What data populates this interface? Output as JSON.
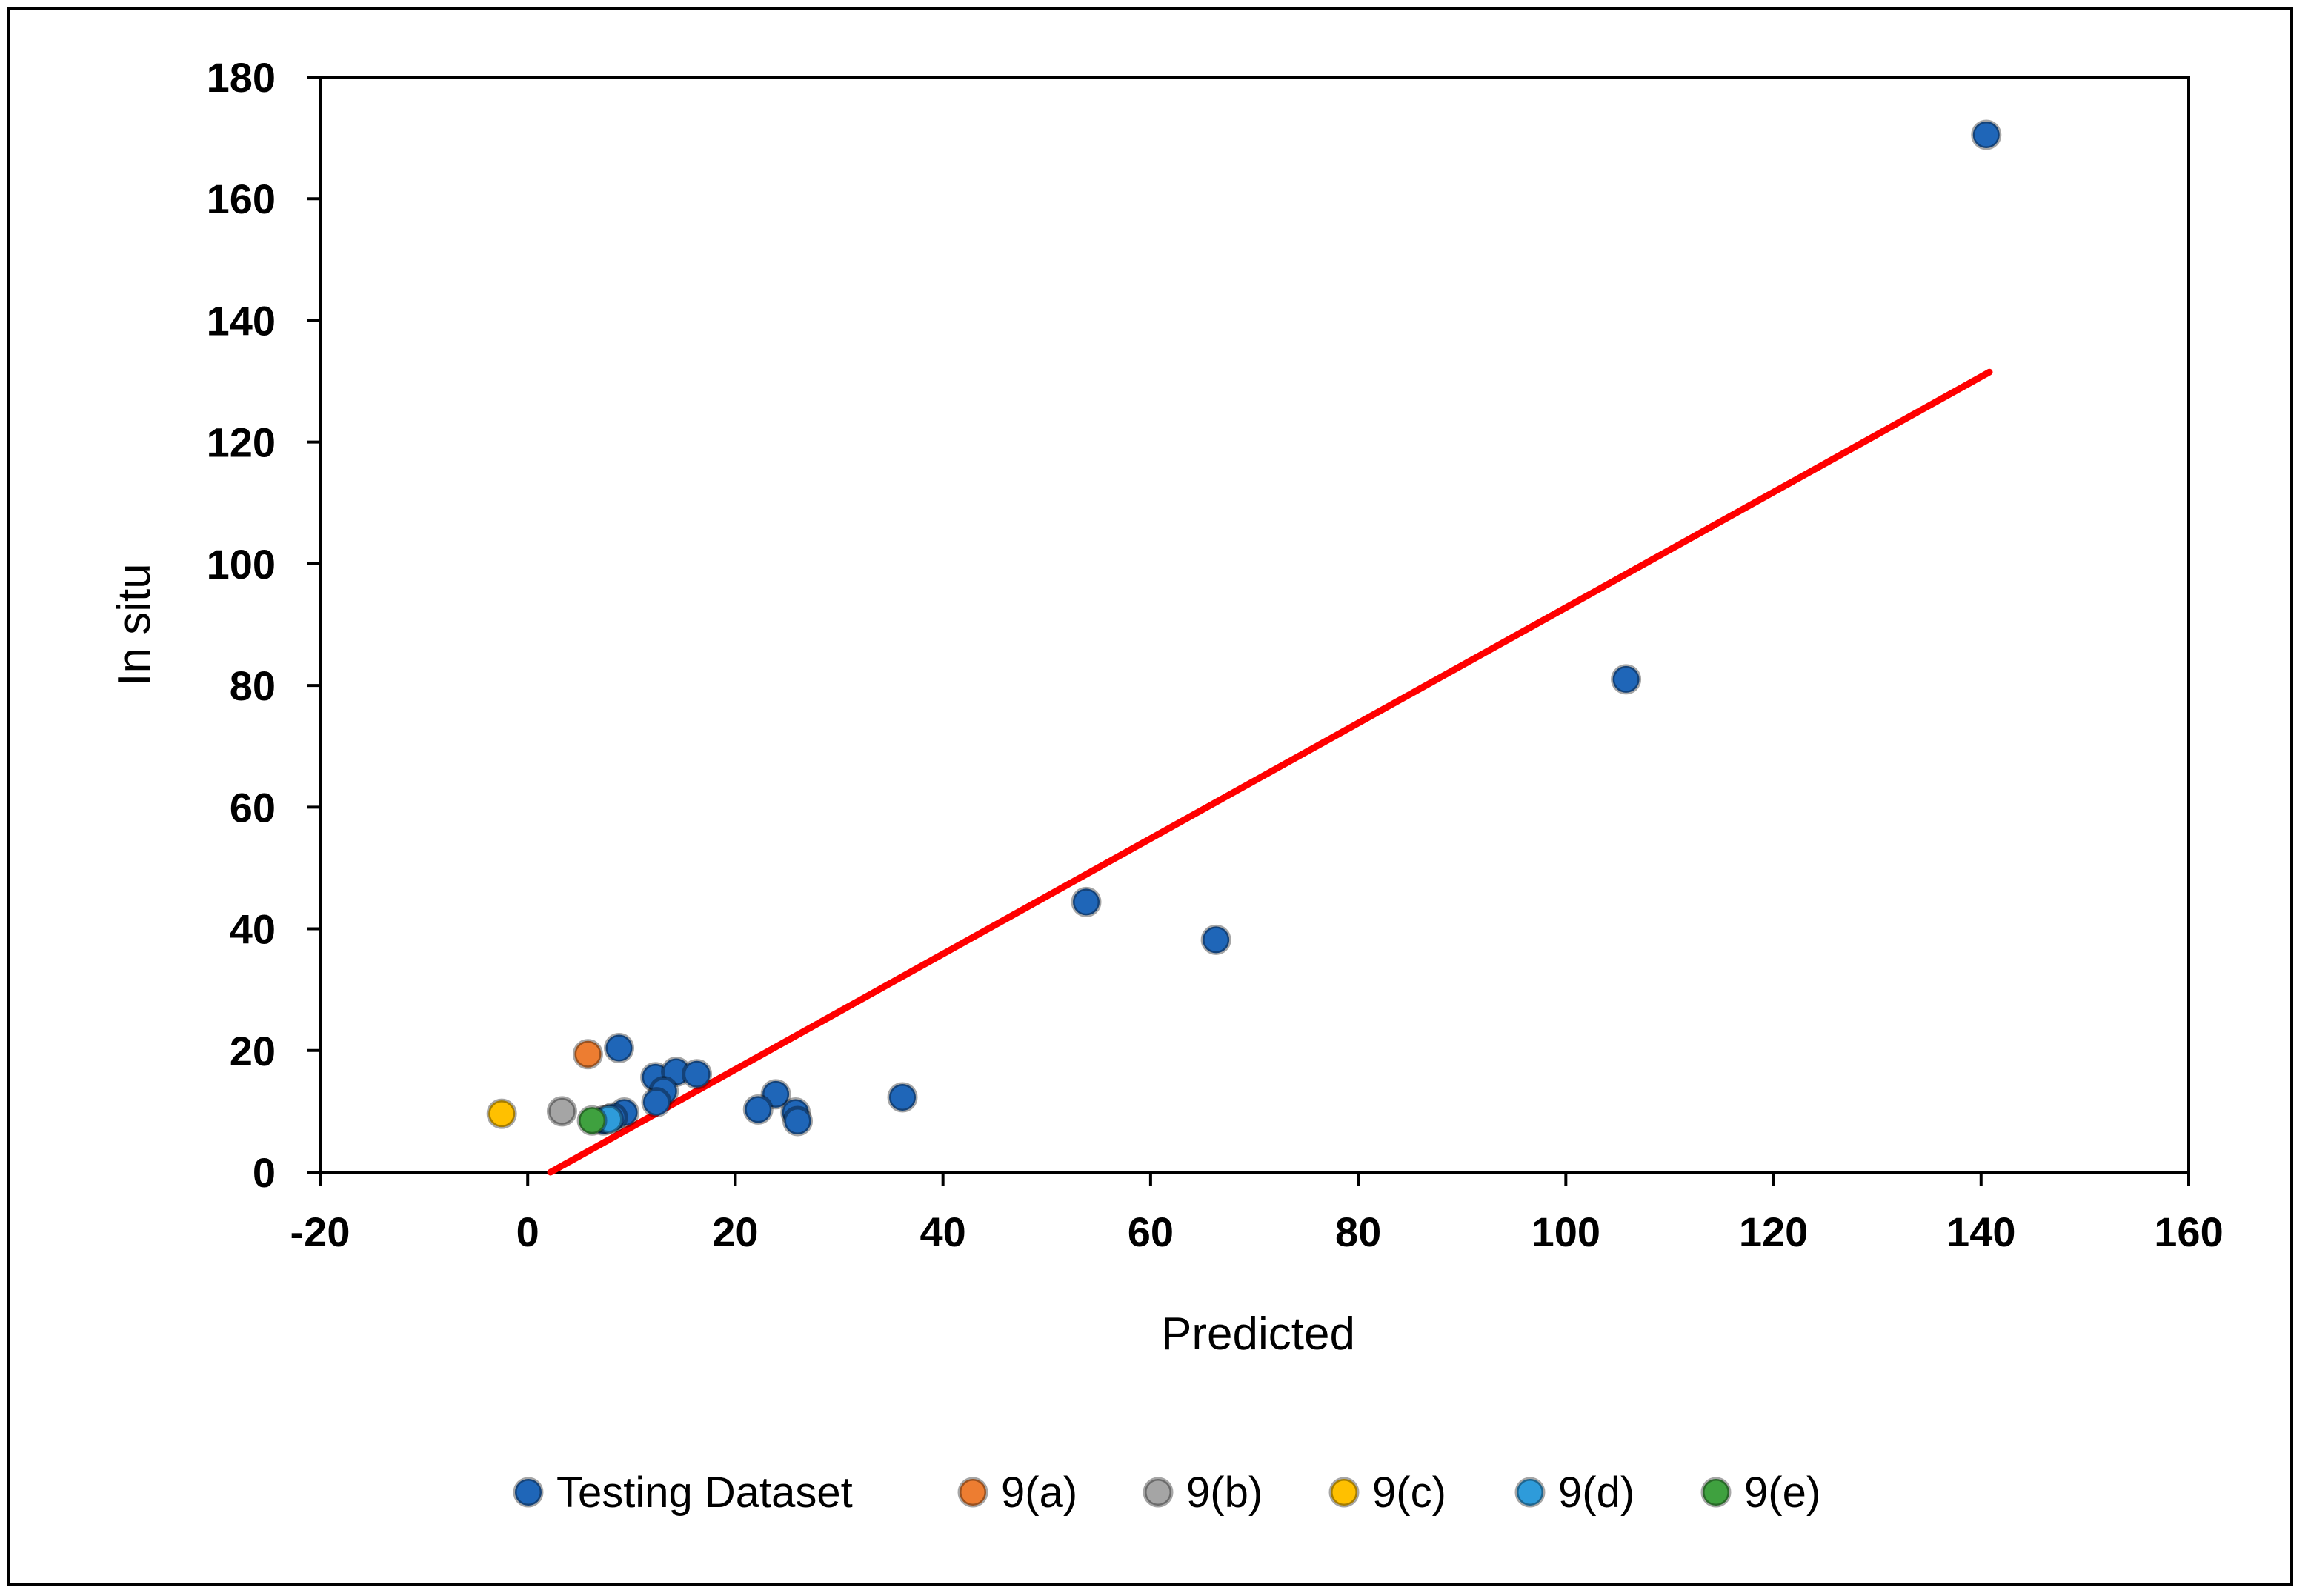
{
  "chart_data": {
    "type": "scatter",
    "title": "",
    "xlabel": "Predicted",
    "ylabel": "In situ",
    "xlim": [
      -20,
      160
    ],
    "ylim": [
      0,
      180
    ],
    "xticks": [
      -20,
      0,
      20,
      40,
      60,
      80,
      100,
      120,
      140,
      160
    ],
    "yticks": [
      0,
      20,
      40,
      60,
      80,
      100,
      120,
      140,
      160,
      180
    ],
    "grid": false,
    "legend_position": "bottom",
    "series": [
      {
        "name": "Testing Dataset",
        "color": "#1F66B8",
        "points": [
          [
            140.5,
            170.5
          ],
          [
            105.8,
            81
          ],
          [
            66.3,
            38.2
          ],
          [
            53.8,
            44.4
          ],
          [
            36.1,
            12.3
          ],
          [
            8.8,
            20.4
          ],
          [
            12.3,
            15.6
          ],
          [
            14.3,
            16.5
          ],
          [
            16.3,
            16.1
          ],
          [
            13.1,
            13.3
          ],
          [
            12.4,
            11.5
          ],
          [
            9.3,
            9.8
          ],
          [
            8.2,
            9.0
          ],
          [
            7.3,
            8.5
          ],
          [
            23.9,
            12.8
          ],
          [
            22.2,
            10.3
          ],
          [
            25.8,
            9.8
          ],
          [
            26.0,
            8.4
          ]
        ]
      },
      {
        "name": "9(a)",
        "color": "#ED7D31",
        "points": [
          [
            5.8,
            19.4
          ]
        ]
      },
      {
        "name": "9(b)",
        "color": "#A5A5A5",
        "points": [
          [
            3.3,
            10.0
          ]
        ]
      },
      {
        "name": "9(c)",
        "color": "#FFC000",
        "points": [
          [
            -2.5,
            9.6
          ]
        ]
      },
      {
        "name": "9(d)",
        "color": "#2E9BDA",
        "points": [
          [
            7.8,
            8.7
          ]
        ]
      },
      {
        "name": "9(e)",
        "color": "#3FA13F",
        "points": [
          [
            6.2,
            8.5
          ]
        ]
      }
    ],
    "trendline": {
      "color": "#FF0000",
      "x": [
        2.2,
        140.8
      ],
      "y": [
        0,
        131.5
      ]
    }
  }
}
